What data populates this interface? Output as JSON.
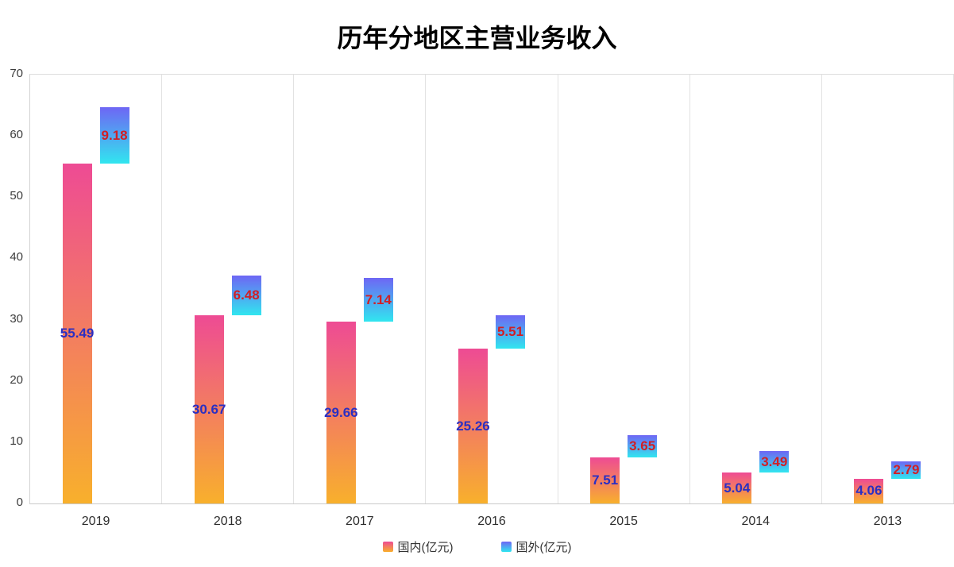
{
  "chart_data": {
    "type": "bar",
    "title": "历年分地区主营业务收入",
    "categories": [
      "2019",
      "2018",
      "2017",
      "2016",
      "2015",
      "2014",
      "2013"
    ],
    "series": [
      {
        "name": "国内(亿元)",
        "values": [
          55.49,
          30.67,
          29.66,
          25.26,
          7.51,
          5.04,
          4.06
        ],
        "gradient_top": "#ee4b94",
        "gradient_bottom": "#f8b02c",
        "label_color": "#2b2fc2",
        "stacked_on_previous": false
      },
      {
        "name": "国外(亿元)",
        "values": [
          9.18,
          6.48,
          7.14,
          5.51,
          3.65,
          3.49,
          2.79
        ],
        "gradient_top": "#6e66f4",
        "gradient_bottom": "#31e6ef",
        "label_color": "#d01f26",
        "stacked_on_previous": true
      }
    ],
    "ylim": [
      0,
      70
    ],
    "ytick_step": 10,
    "yticks": [
      "0",
      "10",
      "20",
      "30",
      "40",
      "50",
      "60",
      "70"
    ],
    "xlabel": "",
    "ylabel": "",
    "legend_position": "bottom",
    "grid": "vertical-separators-only",
    "colors": {
      "axis_line": "#c9c9c9",
      "grid_line": "#e2e2e2",
      "tick_text": "#3c3c3c",
      "xlabel_text": "#2e2e2e",
      "title_text": "#000000",
      "background": "#ffffff"
    }
  }
}
